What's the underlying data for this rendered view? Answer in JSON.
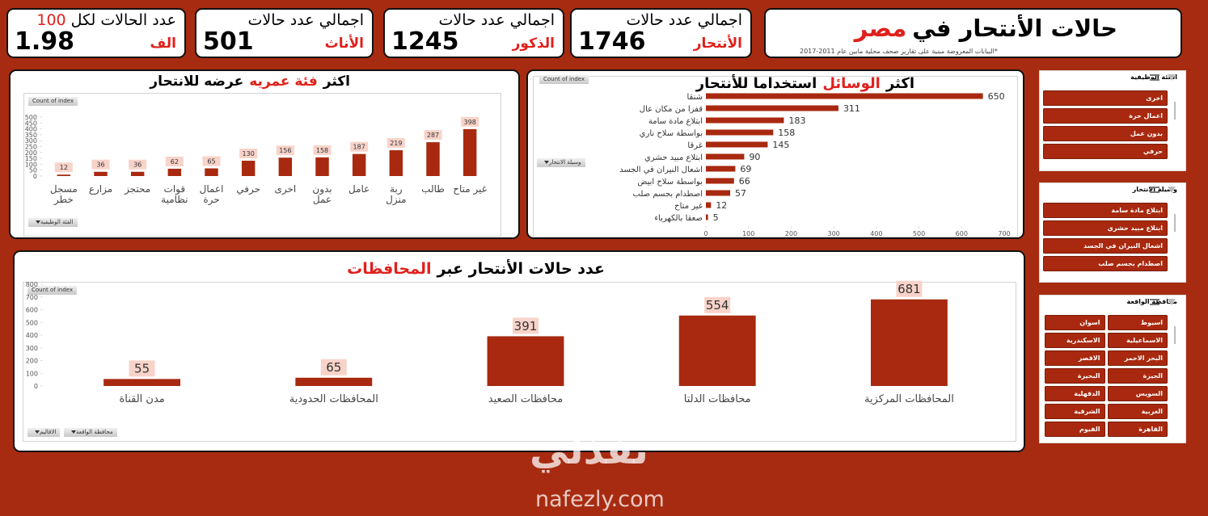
{
  "header": {
    "title": [
      "حالات الأنتحار في",
      "مصر"
    ],
    "title_colors": [
      "#000000",
      "#e0201b"
    ],
    "subtitle": "*البيانات المعروضة مبنية على تقارير صحف محلية مابين عام 2011-2017"
  },
  "kpis": [
    {
      "title": "اجمالي عدد حالات",
      "label": "الأنتحار",
      "value": 1746
    },
    {
      "title": "اجمالي عدد حالات",
      "label": "الذكور",
      "value": 1245
    },
    {
      "title": "اجمالي عدد حالات",
      "label": "الأناث",
      "value": 501
    },
    {
      "title": "عدد الحالات لكل",
      "title_number": 100,
      "label": "الف",
      "value": 1.98
    }
  ],
  "chart_data": [
    {
      "type": "bar",
      "title": [
        "اكثر",
        "فئة عمريه",
        "عرضه للانتحار"
      ],
      "title_colors": [
        "#000000",
        "#e0201b",
        "#000000"
      ],
      "value_field": "Count of index",
      "field_buttons": [
        "الفئة الوظيفية"
      ],
      "categories": [
        "مسجل خطر",
        "مزارع",
        "محتجز",
        "قوات نظامية",
        "اعمال حرة",
        "حرفي",
        "اخرى",
        "بدون عمل",
        "عامل",
        "ربة منزل",
        "طالب",
        "غير متاح"
      ],
      "values": [
        12,
        36,
        36,
        62,
        65,
        130,
        156,
        158,
        187,
        219,
        287,
        398
      ],
      "color": "#a8290f",
      "ylim": [
        0,
        500
      ],
      "yticks": [
        0,
        50,
        100,
        150,
        200,
        250,
        300,
        350,
        400,
        450,
        500
      ],
      "grid": false
    },
    {
      "type": "hbar",
      "title": [
        "اكثر",
        "الوسائل",
        "استخداما للأنتحار"
      ],
      "title_colors": [
        "#000000",
        "#e0201b",
        "#000000"
      ],
      "value_field": "Count of index",
      "field_buttons": [
        "وسيلة الانتحار"
      ],
      "categories": [
        "شنقا",
        "قفزا من مكان عال",
        "ابتلاع مادة سامة",
        "بواسطة سلاح ناري",
        "غرقا",
        "ابتلاع مبيد حشري",
        "اشعال النيران في الجسد",
        "بواسطة سلاح ابيض",
        "اصطدام بجسم صلب",
        "غير متاح",
        "صعقا بالكهرباء"
      ],
      "values": [
        650,
        311,
        183,
        158,
        145,
        90,
        69,
        66,
        57,
        12,
        5
      ],
      "color": "#a8290f",
      "xlim": [
        0,
        700
      ],
      "xticks": [
        0,
        100,
        200,
        300,
        400,
        500,
        600,
        700
      ],
      "grid": false
    },
    {
      "type": "bar",
      "title": [
        "عدد حالات الأنتحار عبر",
        "المحافظات"
      ],
      "title_colors": [
        "#000000",
        "#e0201b"
      ],
      "value_field": "Count of index",
      "field_buttons": [
        "الاقاليم",
        "محافظة الواقعة"
      ],
      "categories": [
        "مدن القناة",
        "المحافظات الحدودية",
        "محافظات الصعيد",
        "محافظات الدلتا",
        "المحافظات المركزية"
      ],
      "values": [
        55,
        65,
        391,
        554,
        681
      ],
      "color": "#a8290f",
      "ylim": [
        0,
        800
      ],
      "yticks": [
        0,
        100,
        200,
        300,
        400,
        500,
        600,
        700,
        800
      ],
      "grid": false
    }
  ],
  "slicers": [
    {
      "title": "الفئة الوظيفية",
      "columns": 1,
      "items": [
        "اخرى",
        "اعمال حرة",
        "بدون عمل",
        "حرفي"
      ]
    },
    {
      "title": "وسيلة الانتحار",
      "columns": 1,
      "items": [
        "ابتلاع مادة سامة",
        "ابتلاع مبيد حشري",
        "اشعال النيران في الجسد",
        "اصطدام بجسم صلب"
      ]
    },
    {
      "title": "محافظة الواقعة",
      "columns": 2,
      "items": [
        "اسيوط",
        "اسوان",
        "الاسماعيلية",
        "الاسكندرية",
        "البحر الاحمر",
        "الاقصر",
        "الجيزة",
        "البحيرة",
        "السويس",
        "الدقهلية",
        "الغربية",
        "الشرقية",
        "القاهرة",
        "الفيوم"
      ]
    }
  ],
  "watermark": {
    "arabic": "نفذلي",
    "latin": "nafezly.com"
  }
}
